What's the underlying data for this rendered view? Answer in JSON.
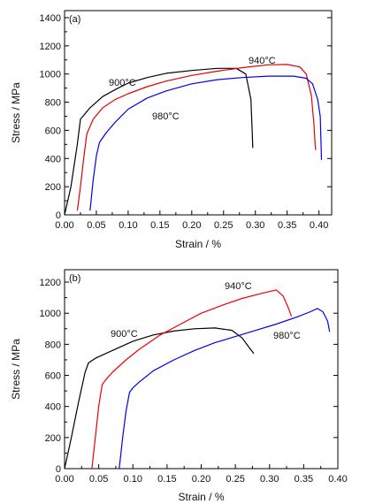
{
  "chart_data": [
    {
      "type": "line",
      "panel_label": "(a)",
      "xlabel": "Strain / %",
      "ylabel": "Stress / MPa",
      "xlim": [
        0.0,
        0.42
      ],
      "ylim": [
        0,
        1450
      ],
      "xticks": [
        "0.00",
        "0.05",
        "0.10",
        "0.15",
        "0.20",
        "0.25",
        "0.30",
        "0.35",
        "0.40"
      ],
      "yticks": [
        "0",
        "200",
        "400",
        "600",
        "800",
        "1000",
        "1200",
        "1400"
      ],
      "grid": false,
      "series": [
        {
          "name": "900°C",
          "color": "#000000",
          "x": [
            0.0,
            0.01,
            0.02,
            0.025,
            0.04,
            0.06,
            0.08,
            0.1,
            0.13,
            0.16,
            0.2,
            0.24,
            0.27,
            0.285,
            0.293,
            0.295,
            0.296
          ],
          "y": [
            0,
            200,
            500,
            680,
            760,
            840,
            890,
            935,
            975,
            1005,
            1025,
            1040,
            1040,
            1000,
            820,
            600,
            475
          ]
        },
        {
          "name": "940°C",
          "color": "#e00000",
          "x": [
            0.02,
            0.025,
            0.03,
            0.035,
            0.045,
            0.06,
            0.08,
            0.1,
            0.13,
            0.16,
            0.2,
            0.24,
            0.28,
            0.32,
            0.35,
            0.37,
            0.38,
            0.388,
            0.392,
            0.394,
            0.395
          ],
          "y": [
            30,
            200,
            400,
            575,
            680,
            760,
            820,
            860,
            910,
            950,
            990,
            1020,
            1045,
            1065,
            1068,
            1050,
            1000,
            850,
            650,
            500,
            460
          ]
        },
        {
          "name": "980°C",
          "color": "#0000ee",
          "x": [
            0.04,
            0.045,
            0.05,
            0.055,
            0.065,
            0.08,
            0.1,
            0.13,
            0.16,
            0.2,
            0.24,
            0.28,
            0.32,
            0.36,
            0.38,
            0.39,
            0.398,
            0.402,
            0.404
          ],
          "y": [
            30,
            250,
            420,
            515,
            580,
            660,
            750,
            830,
            880,
            930,
            960,
            975,
            985,
            985,
            970,
            930,
            820,
            700,
            390
          ]
        }
      ]
    },
    {
      "type": "line",
      "panel_label": "(b)",
      "xlabel": "Strain / %",
      "ylabel": "Stress / MPa",
      "xlim": [
        0.0,
        0.4
      ],
      "ylim": [
        0,
        1280
      ],
      "xticks": [
        "0.00",
        "0.05",
        "0.10",
        "0.15",
        "0.20",
        "0.25",
        "0.30",
        "0.35",
        "0.40"
      ],
      "yticks": [
        "0",
        "200",
        "400",
        "600",
        "800",
        "1000",
        "1200"
      ],
      "grid": false,
      "series": [
        {
          "name": "900°C",
          "color": "#000000",
          "x": [
            0.0,
            0.01,
            0.02,
            0.03,
            0.035,
            0.045,
            0.06,
            0.08,
            0.1,
            0.13,
            0.16,
            0.19,
            0.22,
            0.245,
            0.26,
            0.27,
            0.277
          ],
          "y": [
            0,
            200,
            420,
            620,
            680,
            710,
            740,
            780,
            820,
            860,
            885,
            900,
            905,
            890,
            840,
            780,
            740
          ]
        },
        {
          "name": "940°C",
          "color": "#ee0000",
          "x": [
            0.04,
            0.045,
            0.05,
            0.055,
            0.06,
            0.07,
            0.09,
            0.11,
            0.14,
            0.17,
            0.2,
            0.23,
            0.26,
            0.29,
            0.31,
            0.32,
            0.327,
            0.332
          ],
          "y": [
            0,
            200,
            400,
            540,
            570,
            620,
            700,
            770,
            860,
            930,
            1000,
            1050,
            1095,
            1130,
            1150,
            1110,
            1040,
            980
          ]
        },
        {
          "name": "980°C",
          "color": "#0000ee",
          "x": [
            0.08,
            0.085,
            0.09,
            0.095,
            0.1,
            0.11,
            0.13,
            0.16,
            0.19,
            0.22,
            0.25,
            0.28,
            0.31,
            0.34,
            0.36,
            0.37,
            0.378,
            0.385,
            0.388
          ],
          "y": [
            0,
            200,
            370,
            490,
            520,
            560,
            630,
            700,
            760,
            810,
            850,
            890,
            930,
            975,
            1010,
            1030,
            1010,
            950,
            880
          ]
        }
      ]
    }
  ]
}
